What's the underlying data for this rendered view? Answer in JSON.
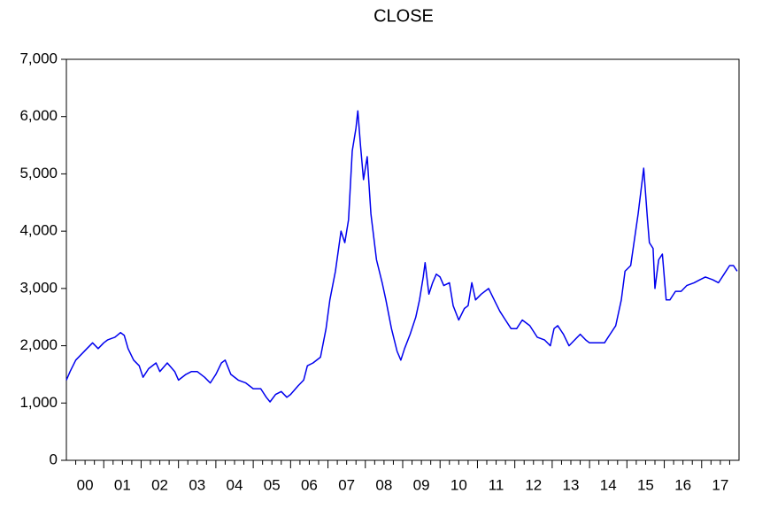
{
  "chart_data": {
    "type": "line",
    "title": "CLOSE",
    "x": [
      0,
      0.1,
      0.25,
      0.4,
      0.55,
      0.7,
      0.85,
      1.0,
      1.1,
      1.3,
      1.45,
      1.55,
      1.65,
      1.8,
      1.95,
      2.05,
      2.2,
      2.4,
      2.5,
      2.7,
      2.9,
      3.0,
      3.2,
      3.35,
      3.5,
      3.7,
      3.85,
      4.0,
      4.15,
      4.25,
      4.4,
      4.6,
      4.8,
      5.0,
      5.2,
      5.35,
      5.45,
      5.6,
      5.75,
      5.9,
      6.0,
      6.2,
      6.35,
      6.45,
      6.6,
      6.8,
      6.95,
      7.05,
      7.2,
      7.35,
      7.45,
      7.55,
      7.65,
      7.75,
      7.8,
      7.87,
      7.95,
      8.05,
      8.15,
      8.3,
      8.45,
      8.55,
      8.7,
      8.85,
      8.95,
      9.05,
      9.2,
      9.35,
      9.45,
      9.55,
      9.6,
      9.7,
      9.8,
      9.9,
      10.0,
      10.1,
      10.25,
      10.35,
      10.5,
      10.65,
      10.75,
      10.85,
      10.95,
      11.1,
      11.3,
      11.45,
      11.6,
      11.75,
      11.9,
      12.05,
      12.2,
      12.4,
      12.6,
      12.8,
      12.95,
      13.05,
      13.15,
      13.3,
      13.45,
      13.6,
      13.75,
      13.9,
      14.0,
      14.2,
      14.4,
      14.55,
      14.7,
      14.85,
      14.95,
      15.1,
      15.3,
      15.45,
      15.55,
      15.6,
      15.7,
      15.75,
      15.85,
      15.95,
      16.05,
      16.15,
      16.3,
      16.45,
      16.6,
      16.8,
      16.95,
      17.1,
      17.3,
      17.45,
      17.6,
      17.75,
      17.85,
      17.95
    ],
    "series": [
      {
        "name": "CLOSE",
        "color": "#0000ee",
        "values": [
          1400,
          1550,
          1750,
          1850,
          1950,
          2050,
          1950,
          2050,
          2100,
          2150,
          2230,
          2180,
          1950,
          1750,
          1650,
          1450,
          1600,
          1700,
          1550,
          1700,
          1550,
          1400,
          1500,
          1550,
          1550,
          1450,
          1350,
          1500,
          1700,
          1750,
          1500,
          1400,
          1350,
          1250,
          1250,
          1100,
          1020,
          1150,
          1200,
          1100,
          1150,
          1300,
          1400,
          1650,
          1700,
          1800,
          2300,
          2800,
          3300,
          4000,
          3800,
          4200,
          5400,
          5800,
          6100,
          5500,
          4900,
          5300,
          4300,
          3500,
          3100,
          2800,
          2300,
          1900,
          1750,
          1950,
          2200,
          2500,
          2800,
          3200,
          3450,
          2900,
          3100,
          3250,
          3200,
          3050,
          3100,
          2700,
          2450,
          2650,
          2700,
          3100,
          2800,
          2900,
          3000,
          2800,
          2600,
          2450,
          2300,
          2300,
          2450,
          2350,
          2150,
          2100,
          2000,
          2300,
          2350,
          2200,
          2000,
          2100,
          2200,
          2100,
          2050,
          2050,
          2050,
          2200,
          2350,
          2800,
          3300,
          3400,
          4300,
          5100,
          4200,
          3800,
          3700,
          3000,
          3500,
          3600,
          2800,
          2800,
          2950,
          2950,
          3050,
          3100,
          3150,
          3200,
          3150,
          3100,
          3250,
          3400,
          3400,
          3300
        ]
      }
    ],
    "xlim": [
      0,
      18
    ],
    "xticks": [
      {
        "value": 0.5,
        "label": "00"
      },
      {
        "value": 1.5,
        "label": "01"
      },
      {
        "value": 2.5,
        "label": "02"
      },
      {
        "value": 3.5,
        "label": "03"
      },
      {
        "value": 4.5,
        "label": "04"
      },
      {
        "value": 5.5,
        "label": "05"
      },
      {
        "value": 6.5,
        "label": "06"
      },
      {
        "value": 7.5,
        "label": "07"
      },
      {
        "value": 8.5,
        "label": "08"
      },
      {
        "value": 9.5,
        "label": "09"
      },
      {
        "value": 10.5,
        "label": "10"
      },
      {
        "value": 11.5,
        "label": "11"
      },
      {
        "value": 12.5,
        "label": "12"
      },
      {
        "value": 13.5,
        "label": "13"
      },
      {
        "value": 14.5,
        "label": "14"
      },
      {
        "value": 15.5,
        "label": "15"
      },
      {
        "value": 16.5,
        "label": "16"
      },
      {
        "value": 17.5,
        "label": "17"
      }
    ],
    "ylim": [
      0,
      7000
    ],
    "yticks": [
      0,
      {
        "value": 1000,
        "label": "1,000"
      },
      {
        "value": 2000,
        "label": "2,000"
      },
      {
        "value": 3000,
        "label": "3,000"
      },
      {
        "value": 4000,
        "label": "4,000"
      },
      {
        "value": 5000,
        "label": "5,000"
      },
      {
        "value": 6000,
        "label": "6,000"
      },
      {
        "value": 7000,
        "label": "7,000"
      }
    ],
    "grid": false
  }
}
